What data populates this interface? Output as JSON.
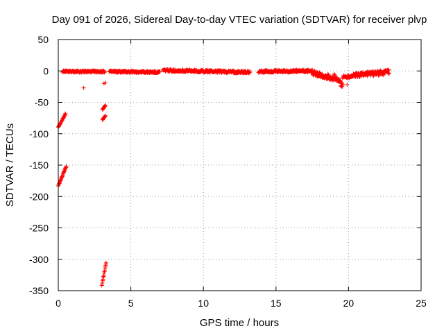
{
  "chart_data": {
    "type": "scatter",
    "title": "Day 091 of 2026, Sidereal Day-to-day VTEC variation (SDTVAR) for receiver plvp",
    "xlabel": "GPS time / hours",
    "ylabel": "SDTVAR / TECUs",
    "xlim": [
      0,
      25
    ],
    "ylim": [
      -350,
      50
    ],
    "xticks": [
      "0",
      "5",
      "10",
      "15",
      "20",
      "25"
    ],
    "yticks": [
      "50",
      "0",
      "-50",
      "-100",
      "-150",
      "-200",
      "-250",
      "-300",
      "-350"
    ],
    "grid": true,
    "marker": "+",
    "color": "#ff0000",
    "series": [
      {
        "name": "SDTVAR",
        "segments": [
          {
            "x0": 0.0,
            "x1": 0.5,
            "y0": -90,
            "y1": -68
          },
          {
            "x0": 0.0,
            "x1": 0.55,
            "y0": -183,
            "y1": -152
          },
          {
            "x0": 0.3,
            "x1": 3.2,
            "y0": -1,
            "y1": -1,
            "jitter": 1.5
          },
          {
            "x0": 3.5,
            "x1": 7.0,
            "y0": -1,
            "y1": -2,
            "jitter": 1.5
          },
          {
            "x0": 7.2,
            "x1": 13.2,
            "y0": 1,
            "y1": -2,
            "jitter": 2
          },
          {
            "x0": 13.8,
            "x1": 17.5,
            "y0": -1,
            "y1": 0,
            "jitter": 2
          },
          {
            "x0": 17.5,
            "x1": 19.0,
            "y0": -3,
            "y1": -12,
            "jitter": 4
          },
          {
            "x0": 19.0,
            "x1": 19.6,
            "y0": -10,
            "y1": -22,
            "jitter": 5
          },
          {
            "x0": 19.6,
            "x1": 20.5,
            "y0": -10,
            "y1": -7,
            "jitter": 3
          },
          {
            "x0": 20.5,
            "x1": 22.8,
            "y0": -6,
            "y1": -2,
            "jitter": 4
          },
          {
            "x0": 3.05,
            "x1": 3.25,
            "y0": -62,
            "y1": -55
          },
          {
            "x0": 3.05,
            "x1": 3.25,
            "y0": -78,
            "y1": -71
          },
          {
            "x0": 3.0,
            "x1": 3.3,
            "y0": -342,
            "y1": -305
          }
        ],
        "points": [
          {
            "x": 1.75,
            "y": -27
          },
          {
            "x": 3.15,
            "y": -20
          },
          {
            "x": 3.25,
            "y": -19
          },
          {
            "x": 19.5,
            "y": -24
          },
          {
            "x": 19.9,
            "y": -22
          }
        ]
      }
    ]
  }
}
